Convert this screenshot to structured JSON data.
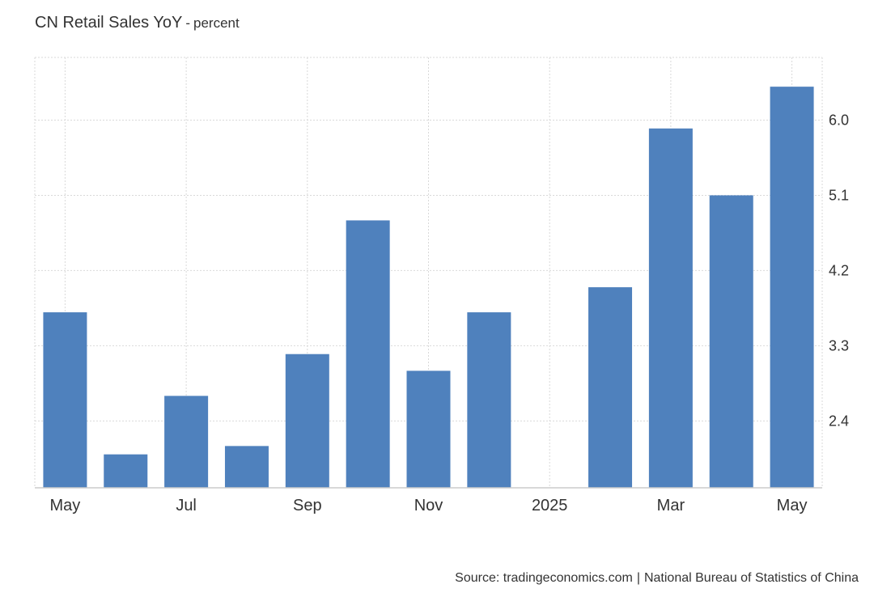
{
  "title": "CN Retail Sales YoY",
  "unit_separator": "-",
  "unit": "percent",
  "source": {
    "site": "Source: tradingeconomics.com",
    "separator": "|",
    "agency": "National Bureau of Statistics of China"
  },
  "colors": {
    "bar": "#4f81bd",
    "grid": "#d9d9d9",
    "text": "#333333"
  },
  "chart_data": {
    "type": "bar",
    "categories": [
      "May",
      "",
      "Jul",
      "",
      "Sep",
      "",
      "Nov",
      "",
      "2025",
      "",
      "Mar",
      "",
      "May"
    ],
    "periods": [
      "2024-05",
      "2024-06",
      "2024-07",
      "2024-08",
      "2024-09",
      "2024-10",
      "2024-11",
      "2024-12",
      "2025-01",
      "2025-02",
      "2025-03",
      "2025-04",
      "2025-05"
    ],
    "values": [
      3.7,
      2.0,
      2.7,
      2.1,
      3.2,
      4.8,
      3.0,
      3.7,
      null,
      4.0,
      5.9,
      5.1,
      6.4
    ],
    "yticks": [
      2.4,
      3.3,
      4.2,
      5.1,
      6.0
    ],
    "ylim": [
      1.6,
      6.75
    ],
    "grid": true,
    "yaxis_position": "right",
    "legend": "none"
  }
}
